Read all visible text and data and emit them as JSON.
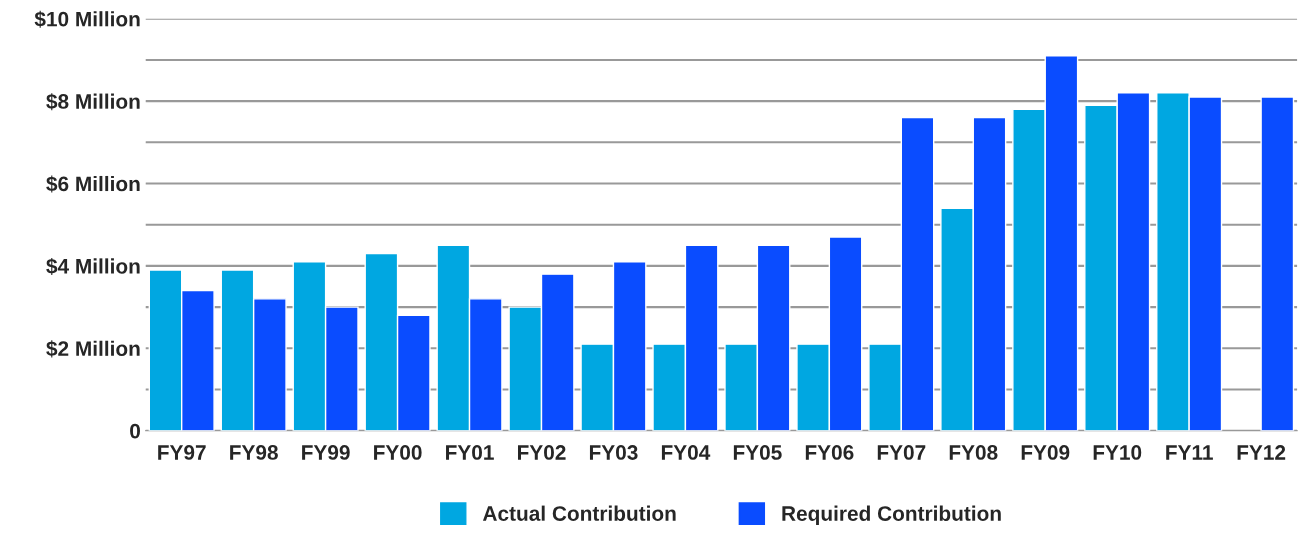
{
  "chart_data": {
    "type": "bar",
    "categories": [
      "FY97",
      "FY98",
      "FY99",
      "FY00",
      "FY01",
      "FY02",
      "FY03",
      "FY04",
      "FY05",
      "FY06",
      "FY07",
      "FY08",
      "FY09",
      "FY10",
      "FY11",
      "FY12"
    ],
    "series": [
      {
        "name": "Actual Contribution",
        "color": "#00a7e1",
        "values": [
          3.9,
          3.9,
          4.1,
          4.3,
          4.5,
          3.0,
          2.1,
          2.1,
          2.1,
          2.1,
          2.1,
          5.4,
          7.8,
          7.9,
          8.2,
          null
        ]
      },
      {
        "name": "Required Contribution",
        "color": "#0a4cff",
        "values": [
          3.4,
          3.2,
          3.0,
          2.8,
          3.2,
          3.8,
          4.1,
          4.5,
          4.5,
          4.7,
          7.6,
          7.6,
          9.1,
          8.2,
          8.1,
          8.1
        ]
      }
    ],
    "ylim": [
      0,
      10
    ],
    "yticks": [
      0,
      {
        "value": 1,
        "label": null
      },
      {
        "value": 2,
        "label": "$2 Million"
      },
      {
        "value": 3,
        "label": null
      },
      {
        "value": 4,
        "label": "$4 Million"
      },
      {
        "value": 5,
        "label": null
      },
      {
        "value": 6,
        "label": "$6 Million"
      },
      {
        "value": 7,
        "label": null
      },
      {
        "value": 8,
        "label": "$8 Million"
      },
      {
        "value": 9,
        "label": null
      },
      {
        "value": 10,
        "label": "$10 Million"
      }
    ],
    "grid": "y",
    "legend": "bottom"
  }
}
